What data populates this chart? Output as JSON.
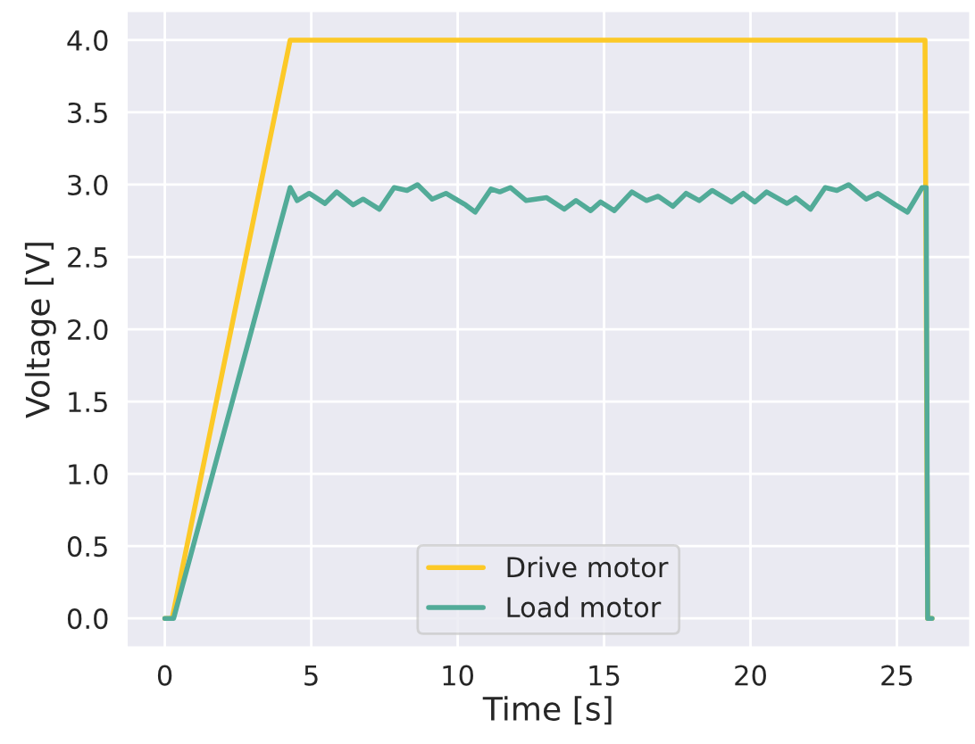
{
  "chart_data": {
    "type": "line",
    "xlabel": "Time [s]",
    "ylabel": "Voltage [V]",
    "xlim": [
      -1.3,
      27.5
    ],
    "xticks": [
      0,
      5,
      10,
      15,
      20,
      25
    ],
    "ylim": [
      -0.2,
      4.2
    ],
    "yticks": [
      {
        "value": 0,
        "label": "0.0"
      },
      0.5,
      {
        "value": 1,
        "label": "1.0"
      },
      1.5,
      {
        "value": 2,
        "label": "2.0"
      },
      2.5,
      {
        "value": 3,
        "label": "3.0"
      },
      3.5,
      {
        "value": 4,
        "label": "4.0"
      }
    ],
    "grid": true,
    "legend": "bottom",
    "line_style": "solid",
    "marker": "none",
    "series": [
      {
        "name": "Drive motor",
        "color": "#fcc927",
        "x": [
          0,
          0.25,
          4.28,
          25.96,
          26.05,
          26.2
        ],
        "values": [
          0,
          0,
          4.0,
          4.0,
          0,
          0
        ]
      },
      {
        "name": "Load motor",
        "color": "#52ab98",
        "x": [
          0,
          0.3,
          4.28,
          4.52,
          4.93,
          5.47,
          5.87,
          6.43,
          6.77,
          7.33,
          7.83,
          8.27,
          8.63,
          9.13,
          9.6,
          10.27,
          10.6,
          11.14,
          11.44,
          11.8,
          12.34,
          13.04,
          13.64,
          14.04,
          14.54,
          14.88,
          15.35,
          15.95,
          16.45,
          16.85,
          17.35,
          17.8,
          18.25,
          18.69,
          19.35,
          19.75,
          20.15,
          20.55,
          21.25,
          21.55,
          22.05,
          22.55,
          22.95,
          23.35,
          23.95,
          24.35,
          24.95,
          25.36,
          25.86,
          26.0,
          26.05,
          26.2
        ],
        "values": [
          0,
          0,
          2.98,
          2.89,
          2.94,
          2.87,
          2.95,
          2.86,
          2.9,
          2.83,
          2.98,
          2.96,
          3.0,
          2.9,
          2.94,
          2.86,
          2.81,
          2.97,
          2.95,
          2.98,
          2.89,
          2.91,
          2.83,
          2.89,
          2.82,
          2.88,
          2.82,
          2.95,
          2.89,
          2.92,
          2.85,
          2.94,
          2.89,
          2.96,
          2.88,
          2.94,
          2.88,
          2.95,
          2.87,
          2.91,
          2.83,
          2.98,
          2.96,
          3.0,
          2.9,
          2.94,
          2.86,
          2.81,
          2.98,
          2.98,
          0,
          0
        ]
      }
    ]
  }
}
